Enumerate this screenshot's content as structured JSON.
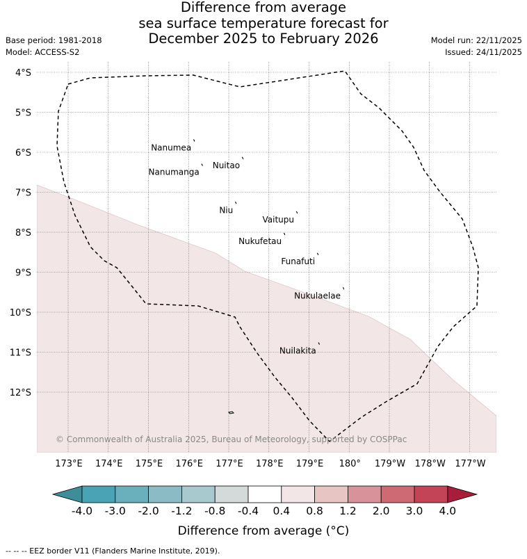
{
  "title_lines": [
    "Difference from average",
    "sea surface temperature forecast for",
    "December 2025 to February 2026"
  ],
  "base_period": "Base period: 1981-2018",
  "model": "Model: ACCESS-S2",
  "model_run": "Model run: 22/11/2025",
  "issued": "Issued: 24/11/2025",
  "lat_labels": [
    "4°S",
    "5°S",
    "6°S",
    "7°S",
    "8°S",
    "9°S",
    "10°S",
    "11°S",
    "12°S"
  ],
  "lon_labels": [
    "173°E",
    "174°E",
    "175°E",
    "176°E",
    "177°E",
    "178°E",
    "179°E",
    "180°",
    "179°W",
    "178°W",
    "177°W"
  ],
  "islands": [
    {
      "name": "Nanumea",
      "lon": 176.12,
      "lat": -5.68
    },
    {
      "name": "Nuitao",
      "lon": 177.33,
      "lat": -6.12
    },
    {
      "name": "Nanumanga",
      "lon": 176.32,
      "lat": -6.29
    },
    {
      "name": "Niu",
      "lon": 177.16,
      "lat": -7.24
    },
    {
      "name": "Vaitupu",
      "lon": 178.68,
      "lat": -7.48
    },
    {
      "name": "Nukufetau",
      "lon": 178.37,
      "lat": -8.02
    },
    {
      "name": "Funafuti",
      "lon": 179.2,
      "lat": -8.52
    },
    {
      "name": "Nukulaelae",
      "lon": 179.84,
      "lat": -9.38
    },
    {
      "name": "Nuilakita",
      "lon": 179.23,
      "lat": -10.76
    }
  ],
  "anomaly_category": "0.4 to 0.8",
  "anomaly_color": "#f3e6e6",
  "copyright": "© Commonwealth of Australia 2025, Bureau of Meteorology, supported by COSPPac",
  "colorbar": {
    "ticks": [
      "-4.0",
      "-3.0",
      "-2.0",
      "-1.2",
      "-0.8",
      "-0.4",
      "0.4",
      "0.8",
      "1.2",
      "2.0",
      "3.0",
      "4.0"
    ],
    "colors": [
      "#4aa3b4",
      "#6aafbc",
      "#8bbcc5",
      "#a8c9cd",
      "#d4d9d9",
      "#ffffff",
      "#f3e6e6",
      "#e6c5c3",
      "#d8939a",
      "#cd6a74",
      "#c24456"
    ],
    "under_color": "#3d8d9b",
    "over_color": "#a81e3a",
    "label": "Difference from average (°C)"
  },
  "footer": "-- -- -- EEZ border V11 (Flanders Marine Institute, 2019)."
}
